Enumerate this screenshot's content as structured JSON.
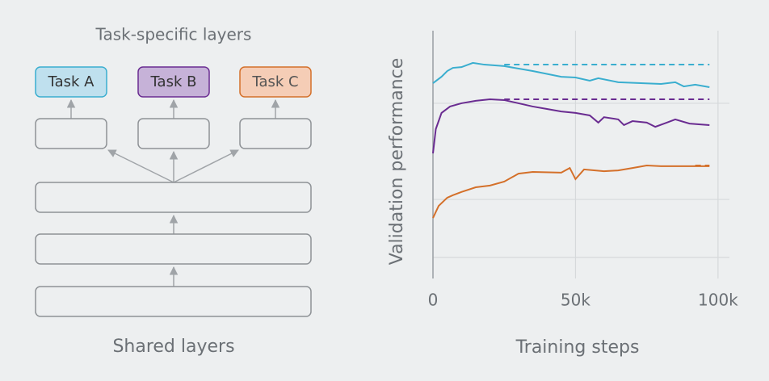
{
  "diagram": {
    "title": "Task-specific layers",
    "tasks": [
      "Task A",
      "Task B",
      "Task C"
    ],
    "footer": "Shared layers"
  },
  "chart_data": {
    "type": "line",
    "xlabel": "Training steps",
    "ylabel": "Validation performance",
    "xlim": [
      0,
      104000
    ],
    "xticks": [
      0,
      {
        "value": 50000,
        "label": "50k"
      },
      {
        "value": 100000,
        "label": "100k"
      }
    ],
    "ylim": [
      0,
      1
    ],
    "ygrid": [
      0.085,
      0.319,
      0.707
    ],
    "grid": true,
    "series": [
      {
        "color": "#3aaecf",
        "dash": false,
        "x": [
          0,
          3000,
          5000,
          7000,
          10000,
          14000,
          18000,
          25000,
          35000,
          45000,
          50000,
          55000,
          58000,
          65000,
          80000,
          85000,
          88000,
          92000,
          97000
        ],
        "values": [
          0.788,
          0.814,
          0.837,
          0.85,
          0.853,
          0.87,
          0.863,
          0.857,
          0.837,
          0.814,
          0.811,
          0.798,
          0.808,
          0.792,
          0.785,
          0.792,
          0.775,
          0.782,
          0.772
        ]
      },
      {
        "color": "#3aaecf",
        "dash": true,
        "x": [
          25000,
          97000
        ],
        "values": [
          0.863,
          0.863
        ]
      },
      {
        "color": "#6a2c91",
        "dash": false,
        "x": [
          0,
          1000,
          3000,
          6000,
          10000,
          15000,
          20000,
          25000,
          30000,
          35000,
          40000,
          45000,
          50000,
          55000,
          58000,
          60000,
          65000,
          67000,
          70000,
          75000,
          78000,
          82000,
          85000,
          90000,
          97000
        ],
        "values": [
          0.505,
          0.603,
          0.668,
          0.694,
          0.707,
          0.717,
          0.723,
          0.72,
          0.707,
          0.694,
          0.684,
          0.674,
          0.668,
          0.658,
          0.629,
          0.651,
          0.642,
          0.619,
          0.635,
          0.629,
          0.612,
          0.629,
          0.642,
          0.625,
          0.619
        ]
      },
      {
        "color": "#6a2c91",
        "dash": true,
        "x": [
          25000,
          97000
        ],
        "values": [
          0.723,
          0.723
        ]
      },
      {
        "color": "#d4702a",
        "dash": false,
        "x": [
          0,
          2000,
          5000,
          7000,
          10000,
          15000,
          20000,
          25000,
          30000,
          35000,
          45000,
          48000,
          50000,
          53000,
          60000,
          65000,
          70000,
          75000,
          80000,
          97000
        ],
        "values": [
          0.244,
          0.293,
          0.326,
          0.336,
          0.349,
          0.368,
          0.375,
          0.391,
          0.423,
          0.43,
          0.427,
          0.446,
          0.401,
          0.44,
          0.433,
          0.436,
          0.446,
          0.456,
          0.453,
          0.453
        ]
      },
      {
        "color": "#d4702a",
        "dash": true,
        "x": [
          92000,
          97000
        ],
        "values": [
          0.456,
          0.456
        ]
      }
    ]
  }
}
